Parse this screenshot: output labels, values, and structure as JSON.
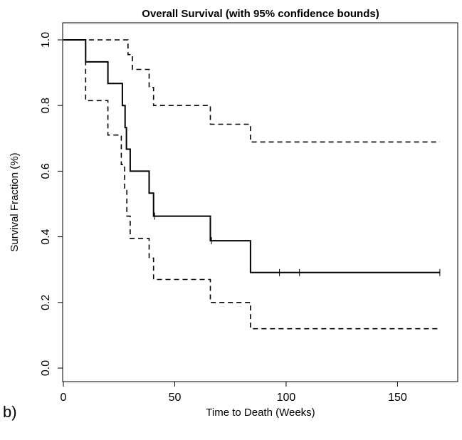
{
  "chart_data": {
    "type": "line",
    "title": "Overall Survival (with 95% confidence bounds)",
    "xlabel": "Time to Death (Weeks)",
    "ylabel": "Survival Fraction (%)",
    "panel_label": "b)",
    "xlim": [
      0,
      175
    ],
    "ylim": [
      -0.05,
      1.04
    ],
    "x_ticks": [
      0,
      50,
      100,
      150
    ],
    "x_tick_labels": [
      "0",
      "50",
      "100",
      "150"
    ],
    "y_ticks": [
      0.0,
      0.2,
      0.4,
      0.6,
      0.8,
      1.0
    ],
    "y_tick_labels": [
      "0.0",
      "0.2",
      "0.4",
      "0.6",
      "0.8",
      "1.0"
    ],
    "grid": false,
    "series": [
      {
        "style": "solid",
        "points": [
          [
            0,
            1.0
          ],
          [
            10,
            1.0
          ],
          [
            10,
            0.933
          ],
          [
            20,
            0.933
          ],
          [
            20,
            0.867
          ],
          [
            26.5,
            0.867
          ],
          [
            26.5,
            0.8
          ],
          [
            27.7,
            0.8
          ],
          [
            27.7,
            0.733
          ],
          [
            28.3,
            0.733
          ],
          [
            28.3,
            0.667
          ],
          [
            30,
            0.667
          ],
          [
            30,
            0.6
          ],
          [
            38.5,
            0.6
          ],
          [
            38.5,
            0.533
          ],
          [
            40.5,
            0.533
          ],
          [
            40.5,
            0.463
          ],
          [
            66,
            0.463
          ],
          [
            66,
            0.388
          ],
          [
            84,
            0.388
          ],
          [
            84,
            0.291
          ],
          [
            169,
            0.291
          ]
        ],
        "censor_marks": [
          [
            41,
            0.463
          ],
          [
            66.5,
            0.388
          ],
          [
            97,
            0.291
          ],
          [
            106,
            0.291
          ],
          [
            169,
            0.291
          ]
        ]
      },
      {
        "style": "dashed",
        "points": [
          [
            0,
            1.0
          ],
          [
            29,
            1.0
          ],
          [
            29,
            0.955
          ],
          [
            31,
            0.955
          ],
          [
            31,
            0.91
          ],
          [
            38.5,
            0.91
          ],
          [
            38.5,
            0.855
          ],
          [
            40.5,
            0.855
          ],
          [
            40.5,
            0.8
          ],
          [
            66,
            0.8
          ],
          [
            66,
            0.743
          ],
          [
            84,
            0.743
          ],
          [
            84,
            0.689
          ],
          [
            169,
            0.689
          ]
        ]
      },
      {
        "style": "dashed",
        "points": [
          [
            0,
            1.0
          ],
          [
            10,
            1.0
          ],
          [
            10,
            0.815
          ],
          [
            20,
            0.815
          ],
          [
            20,
            0.71
          ],
          [
            26,
            0.71
          ],
          [
            26,
            0.62
          ],
          [
            27.5,
            0.62
          ],
          [
            27.5,
            0.545
          ],
          [
            28.5,
            0.545
          ],
          [
            28.5,
            0.463
          ],
          [
            30,
            0.463
          ],
          [
            30,
            0.395
          ],
          [
            38.5,
            0.395
          ],
          [
            38.5,
            0.335
          ],
          [
            40.5,
            0.335
          ],
          [
            40.5,
            0.27
          ],
          [
            66,
            0.27
          ],
          [
            66,
            0.2
          ],
          [
            84,
            0.2
          ],
          [
            84,
            0.12
          ],
          [
            169,
            0.12
          ]
        ]
      }
    ]
  }
}
